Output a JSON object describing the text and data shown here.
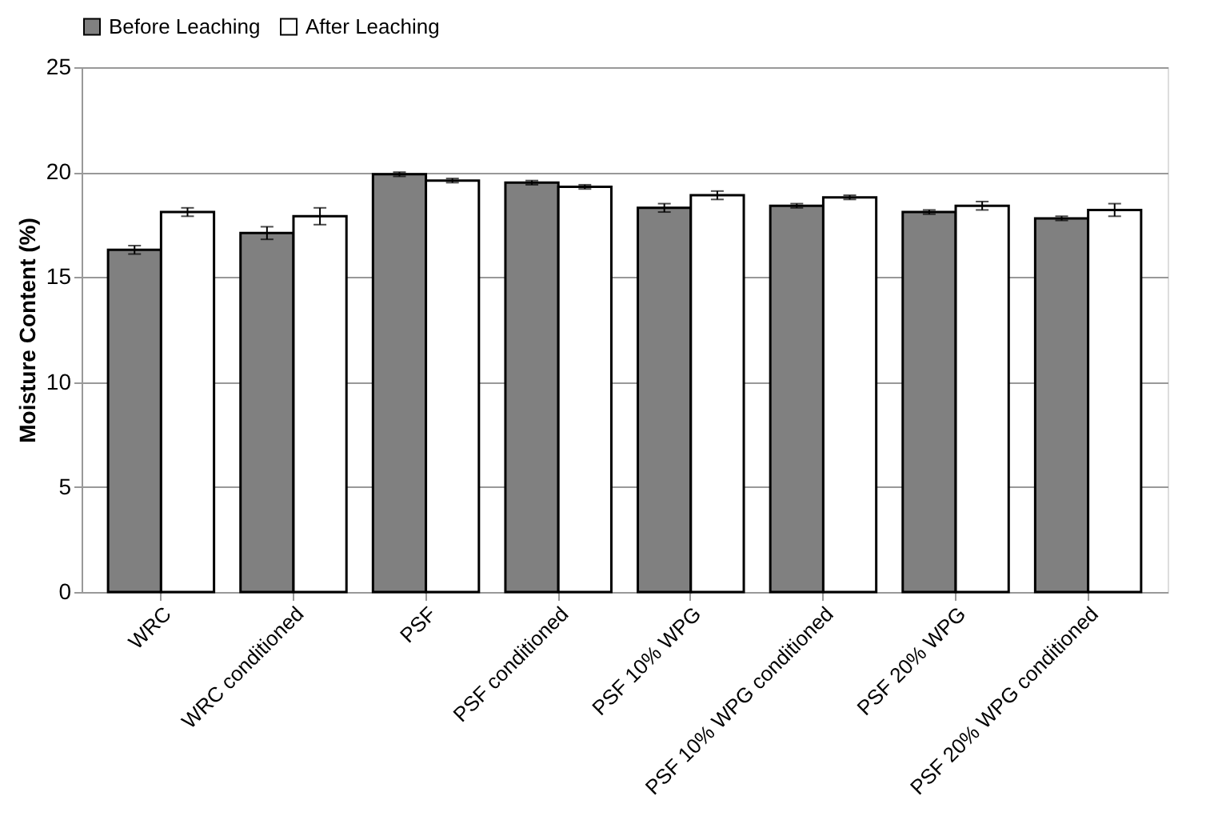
{
  "chart_data": {
    "type": "bar",
    "ylabel": "Moisture Content (%)",
    "categories": [
      "WRC",
      "WRC conditioned",
      "PSF",
      "PSF conditioned",
      "PSF 10% WPG",
      "PSF 10% WPG conditioned",
      "PSF 20% WPG",
      "PSF 20% WPG conditioned"
    ],
    "series": [
      {
        "name": "Before Leaching",
        "color": "#808080",
        "values": [
          16.3,
          17.1,
          19.9,
          19.5,
          18.3,
          18.4,
          18.1,
          17.8
        ],
        "errors": [
          0.2,
          0.3,
          0.1,
          0.1,
          0.2,
          0.1,
          0.1,
          0.1
        ]
      },
      {
        "name": "After Leaching",
        "color": "#ffffff",
        "values": [
          18.1,
          17.9,
          19.6,
          19.3,
          18.9,
          18.8,
          18.4,
          18.2
        ],
        "errors": [
          0.2,
          0.4,
          0.1,
          0.1,
          0.2,
          0.1,
          0.2,
          0.3
        ]
      }
    ],
    "ylim": [
      0,
      25
    ],
    "yticks": [
      0,
      5,
      10,
      15,
      20,
      25
    ],
    "grid": "y",
    "legend": "top"
  }
}
